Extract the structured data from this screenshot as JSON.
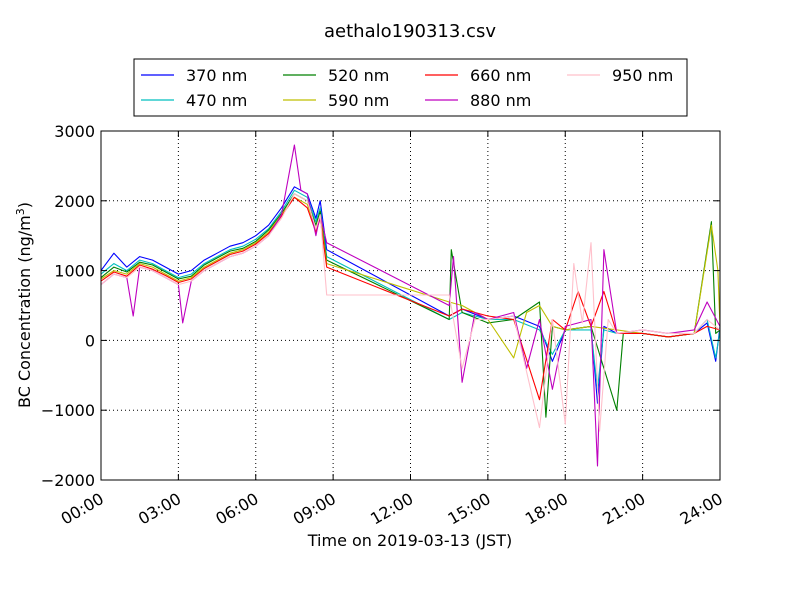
{
  "chart_data": {
    "type": "line",
    "title": "aethalo190313.csv",
    "xlabel": "Time on 2019-03-13 (JST)",
    "ylabel": "BC Concentration (ng/m³)",
    "ylabel_parts": {
      "main": "BC Concentration (ng/m",
      "sup": "3",
      "close": ")"
    },
    "xlim": [
      "00:00",
      "24:00"
    ],
    "ylim": [
      -2000,
      3000
    ],
    "x_ticks": [
      "00:00",
      "03:00",
      "06:00",
      "09:00",
      "12:00",
      "15:00",
      "18:00",
      "21:00",
      "24:00"
    ],
    "y_ticks": [
      -2000,
      -1000,
      0,
      1000,
      2000,
      3000
    ],
    "y_tick_labels": [
      "−2000",
      "−1000",
      "0",
      "1000",
      "2000",
      "3000"
    ],
    "grid": true,
    "legend_position": "top-center",
    "series": [
      {
        "name": "370 nm",
        "color": "#0000ff",
        "points": [
          [
            "00:00",
            1000
          ],
          [
            "00:30",
            1250
          ],
          [
            "01:00",
            1050
          ],
          [
            "01:30",
            1200
          ],
          [
            "02:00",
            1150
          ],
          [
            "02:30",
            1050
          ],
          [
            "03:00",
            950
          ],
          [
            "03:30",
            1000
          ],
          [
            "04:00",
            1150
          ],
          [
            "04:30",
            1250
          ],
          [
            "05:00",
            1350
          ],
          [
            "05:30",
            1400
          ],
          [
            "06:00",
            1500
          ],
          [
            "06:30",
            1650
          ],
          [
            "07:00",
            1900
          ],
          [
            "07:30",
            2200
          ],
          [
            "08:00",
            2100
          ],
          [
            "08:20",
            1750
          ],
          [
            "08:30",
            2000
          ],
          [
            "08:45",
            1300
          ],
          [
            "13:30",
            350
          ],
          [
            "14:00",
            450
          ],
          [
            "15:00",
            300
          ],
          [
            "16:00",
            350
          ],
          [
            "17:00",
            200
          ],
          [
            "17:30",
            -300
          ],
          [
            "18:00",
            150
          ],
          [
            "19:00",
            200
          ],
          [
            "19:15",
            -900
          ],
          [
            "19:30",
            200
          ],
          [
            "20:00",
            100
          ],
          [
            "21:00",
            100
          ],
          [
            "22:00",
            50
          ],
          [
            "23:00",
            100
          ],
          [
            "23:30",
            250
          ],
          [
            "23:50",
            -300
          ],
          [
            "24:00",
            200
          ]
        ]
      },
      {
        "name": "470 nm",
        "color": "#00bfbf",
        "points": [
          [
            "00:00",
            950
          ],
          [
            "00:30",
            1100
          ],
          [
            "01:00",
            1000
          ],
          [
            "01:30",
            1150
          ],
          [
            "02:00",
            1100
          ],
          [
            "02:30",
            1000
          ],
          [
            "03:00",
            900
          ],
          [
            "03:30",
            950
          ],
          [
            "04:00",
            1100
          ],
          [
            "04:30",
            1200
          ],
          [
            "05:00",
            1300
          ],
          [
            "05:30",
            1350
          ],
          [
            "06:00",
            1450
          ],
          [
            "06:30",
            1600
          ],
          [
            "07:00",
            1850
          ],
          [
            "07:30",
            2150
          ],
          [
            "08:00",
            2050
          ],
          [
            "08:20",
            1700
          ],
          [
            "08:30",
            1900
          ],
          [
            "08:45",
            1200
          ],
          [
            "13:30",
            300
          ],
          [
            "14:00",
            400
          ],
          [
            "15:00",
            300
          ],
          [
            "16:00",
            300
          ],
          [
            "17:00",
            150
          ],
          [
            "17:30",
            -200
          ],
          [
            "18:00",
            150
          ],
          [
            "19:00",
            150
          ],
          [
            "19:15",
            -700
          ],
          [
            "19:30",
            150
          ],
          [
            "20:00",
            100
          ],
          [
            "21:00",
            100
          ],
          [
            "22:00",
            50
          ],
          [
            "23:00",
            100
          ],
          [
            "23:30",
            300
          ],
          [
            "23:50",
            -250
          ],
          [
            "24:00",
            150
          ]
        ]
      },
      {
        "name": "520 nm",
        "color": "#008000",
        "points": [
          [
            "00:00",
            900
          ],
          [
            "00:30",
            1050
          ],
          [
            "01:00",
            980
          ],
          [
            "01:30",
            1120
          ],
          [
            "02:00",
            1080
          ],
          [
            "02:30",
            980
          ],
          [
            "03:00",
            880
          ],
          [
            "03:30",
            920
          ],
          [
            "04:00",
            1080
          ],
          [
            "04:30",
            1180
          ],
          [
            "05:00",
            1280
          ],
          [
            "05:30",
            1320
          ],
          [
            "06:00",
            1420
          ],
          [
            "06:30",
            1580
          ],
          [
            "07:00",
            1820
          ],
          [
            "07:30",
            2100
          ],
          [
            "08:00",
            2000
          ],
          [
            "08:20",
            1650
          ],
          [
            "08:30",
            1850
          ],
          [
            "08:45",
            1150
          ],
          [
            "13:30",
            300
          ],
          [
            "13:35",
            1300
          ],
          [
            "14:00",
            400
          ],
          [
            "15:00",
            250
          ],
          [
            "16:00",
            300
          ],
          [
            "17:00",
            550
          ],
          [
            "17:15",
            -1100
          ],
          [
            "17:30",
            200
          ],
          [
            "18:00",
            150
          ],
          [
            "19:00",
            200
          ],
          [
            "20:00",
            -1000
          ],
          [
            "20:15",
            100
          ],
          [
            "21:00",
            100
          ],
          [
            "22:00",
            50
          ],
          [
            "23:00",
            100
          ],
          [
            "23:40",
            1700
          ],
          [
            "23:50",
            100
          ],
          [
            "24:00",
            150
          ]
        ]
      },
      {
        "name": "590 nm",
        "color": "#bfbf00",
        "points": [
          [
            "00:00",
            880
          ],
          [
            "00:30",
            1000
          ],
          [
            "01:00",
            950
          ],
          [
            "01:30",
            1100
          ],
          [
            "02:00",
            1050
          ],
          [
            "02:30",
            950
          ],
          [
            "03:00",
            850
          ],
          [
            "03:30",
            900
          ],
          [
            "04:00",
            1050
          ],
          [
            "04:30",
            1150
          ],
          [
            "05:00",
            1250
          ],
          [
            "05:30",
            1300
          ],
          [
            "06:00",
            1400
          ],
          [
            "06:30",
            1550
          ],
          [
            "07:00",
            1800
          ],
          [
            "07:30",
            2050
          ],
          [
            "08:00",
            1950
          ],
          [
            "08:20",
            1600
          ],
          [
            "08:30",
            1800
          ],
          [
            "08:45",
            1100
          ],
          [
            "13:30",
            550
          ],
          [
            "14:00",
            500
          ],
          [
            "15:00",
            300
          ],
          [
            "16:00",
            -250
          ],
          [
            "16:30",
            400
          ],
          [
            "17:00",
            500
          ],
          [
            "17:30",
            200
          ],
          [
            "18:00",
            150
          ],
          [
            "19:00",
            200
          ],
          [
            "20:00",
            150
          ],
          [
            "21:00",
            100
          ],
          [
            "22:00",
            50
          ],
          [
            "23:00",
            100
          ],
          [
            "23:40",
            1650
          ],
          [
            "23:55",
            1000
          ],
          [
            "24:00",
            200
          ]
        ]
      },
      {
        "name": "660 nm",
        "color": "#ff0000",
        "points": [
          [
            "00:00",
            850
          ],
          [
            "00:30",
            980
          ],
          [
            "01:00",
            920
          ],
          [
            "01:30",
            1080
          ],
          [
            "02:00",
            1020
          ],
          [
            "02:30",
            930
          ],
          [
            "03:00",
            830
          ],
          [
            "03:30",
            880
          ],
          [
            "04:00",
            1030
          ],
          [
            "04:30",
            1130
          ],
          [
            "05:00",
            1230
          ],
          [
            "05:30",
            1280
          ],
          [
            "06:00",
            1380
          ],
          [
            "06:30",
            1530
          ],
          [
            "07:00",
            1780
          ],
          [
            "07:30",
            2050
          ],
          [
            "08:00",
            1900
          ],
          [
            "08:20",
            1550
          ],
          [
            "08:30",
            1750
          ],
          [
            "08:45",
            1050
          ],
          [
            "13:30",
            350
          ],
          [
            "14:00",
            450
          ],
          [
            "15:00",
            350
          ],
          [
            "16:00",
            300
          ],
          [
            "17:00",
            -850
          ],
          [
            "17:30",
            300
          ],
          [
            "18:00",
            150
          ],
          [
            "18:30",
            700
          ],
          [
            "19:00",
            200
          ],
          [
            "19:30",
            700
          ],
          [
            "20:00",
            100
          ],
          [
            "21:00",
            100
          ],
          [
            "22:00",
            50
          ],
          [
            "23:00",
            100
          ],
          [
            "23:30",
            200
          ],
          [
            "24:00",
            150
          ]
        ]
      },
      {
        "name": "880 nm",
        "color": "#bf00bf",
        "points": [
          [
            "00:00",
            800
          ],
          [
            "00:30",
            950
          ],
          [
            "01:00",
            900
          ],
          [
            "01:15",
            350
          ],
          [
            "01:30",
            1050
          ],
          [
            "02:00",
            1000
          ],
          [
            "02:30",
            900
          ],
          [
            "03:00",
            800
          ],
          [
            "03:10",
            250
          ],
          [
            "03:30",
            850
          ],
          [
            "04:00",
            1000
          ],
          [
            "04:30",
            1100
          ],
          [
            "05:00",
            1200
          ],
          [
            "05:30",
            1250
          ],
          [
            "06:00",
            1350
          ],
          [
            "06:30",
            1500
          ],
          [
            "07:00",
            1800
          ],
          [
            "07:30",
            2800
          ],
          [
            "07:45",
            2150
          ],
          [
            "08:00",
            2100
          ],
          [
            "08:20",
            1500
          ],
          [
            "08:30",
            1800
          ],
          [
            "08:45",
            1400
          ],
          [
            "13:30",
            500
          ],
          [
            "13:40",
            1200
          ],
          [
            "14:00",
            -600
          ],
          [
            "14:30",
            400
          ],
          [
            "15:00",
            300
          ],
          [
            "16:00",
            400
          ],
          [
            "16:30",
            -400
          ],
          [
            "17:00",
            300
          ],
          [
            "17:30",
            -700
          ],
          [
            "18:00",
            200
          ],
          [
            "19:00",
            300
          ],
          [
            "19:15",
            -1800
          ],
          [
            "19:30",
            1300
          ],
          [
            "20:00",
            100
          ],
          [
            "21:00",
            150
          ],
          [
            "22:00",
            100
          ],
          [
            "23:00",
            150
          ],
          [
            "23:30",
            550
          ],
          [
            "24:00",
            200
          ]
        ]
      },
      {
        "name": "950 nm",
        "color": "#ffc0cb",
        "points": [
          [
            "00:00",
            800
          ],
          [
            "00:30",
            950
          ],
          [
            "01:00",
            900
          ],
          [
            "01:30",
            1050
          ],
          [
            "02:00",
            1000
          ],
          [
            "02:30",
            900
          ],
          [
            "03:00",
            800
          ],
          [
            "03:30",
            850
          ],
          [
            "04:00",
            1000
          ],
          [
            "04:30",
            1100
          ],
          [
            "05:00",
            1200
          ],
          [
            "05:30",
            1250
          ],
          [
            "06:00",
            1350
          ],
          [
            "06:30",
            1500
          ],
          [
            "07:00",
            1750
          ],
          [
            "07:30",
            2100
          ],
          [
            "08:00",
            2000
          ],
          [
            "08:20",
            1600
          ],
          [
            "08:30",
            1800
          ],
          [
            "08:45",
            650
          ],
          [
            "13:30",
            650
          ],
          [
            "14:00",
            -400
          ],
          [
            "14:30",
            300
          ],
          [
            "15:00",
            300
          ],
          [
            "16:00",
            350
          ],
          [
            "17:00",
            -1250
          ],
          [
            "17:30",
            300
          ],
          [
            "18:00",
            -1200
          ],
          [
            "18:20",
            1100
          ],
          [
            "18:40",
            250
          ],
          [
            "19:00",
            1400
          ],
          [
            "19:20",
            -1300
          ],
          [
            "19:40",
            300
          ],
          [
            "20:00",
            100
          ],
          [
            "21:00",
            150
          ],
          [
            "22:00",
            100
          ],
          [
            "23:00",
            100
          ],
          [
            "23:30",
            300
          ],
          [
            "24:00",
            150
          ]
        ]
      }
    ]
  }
}
